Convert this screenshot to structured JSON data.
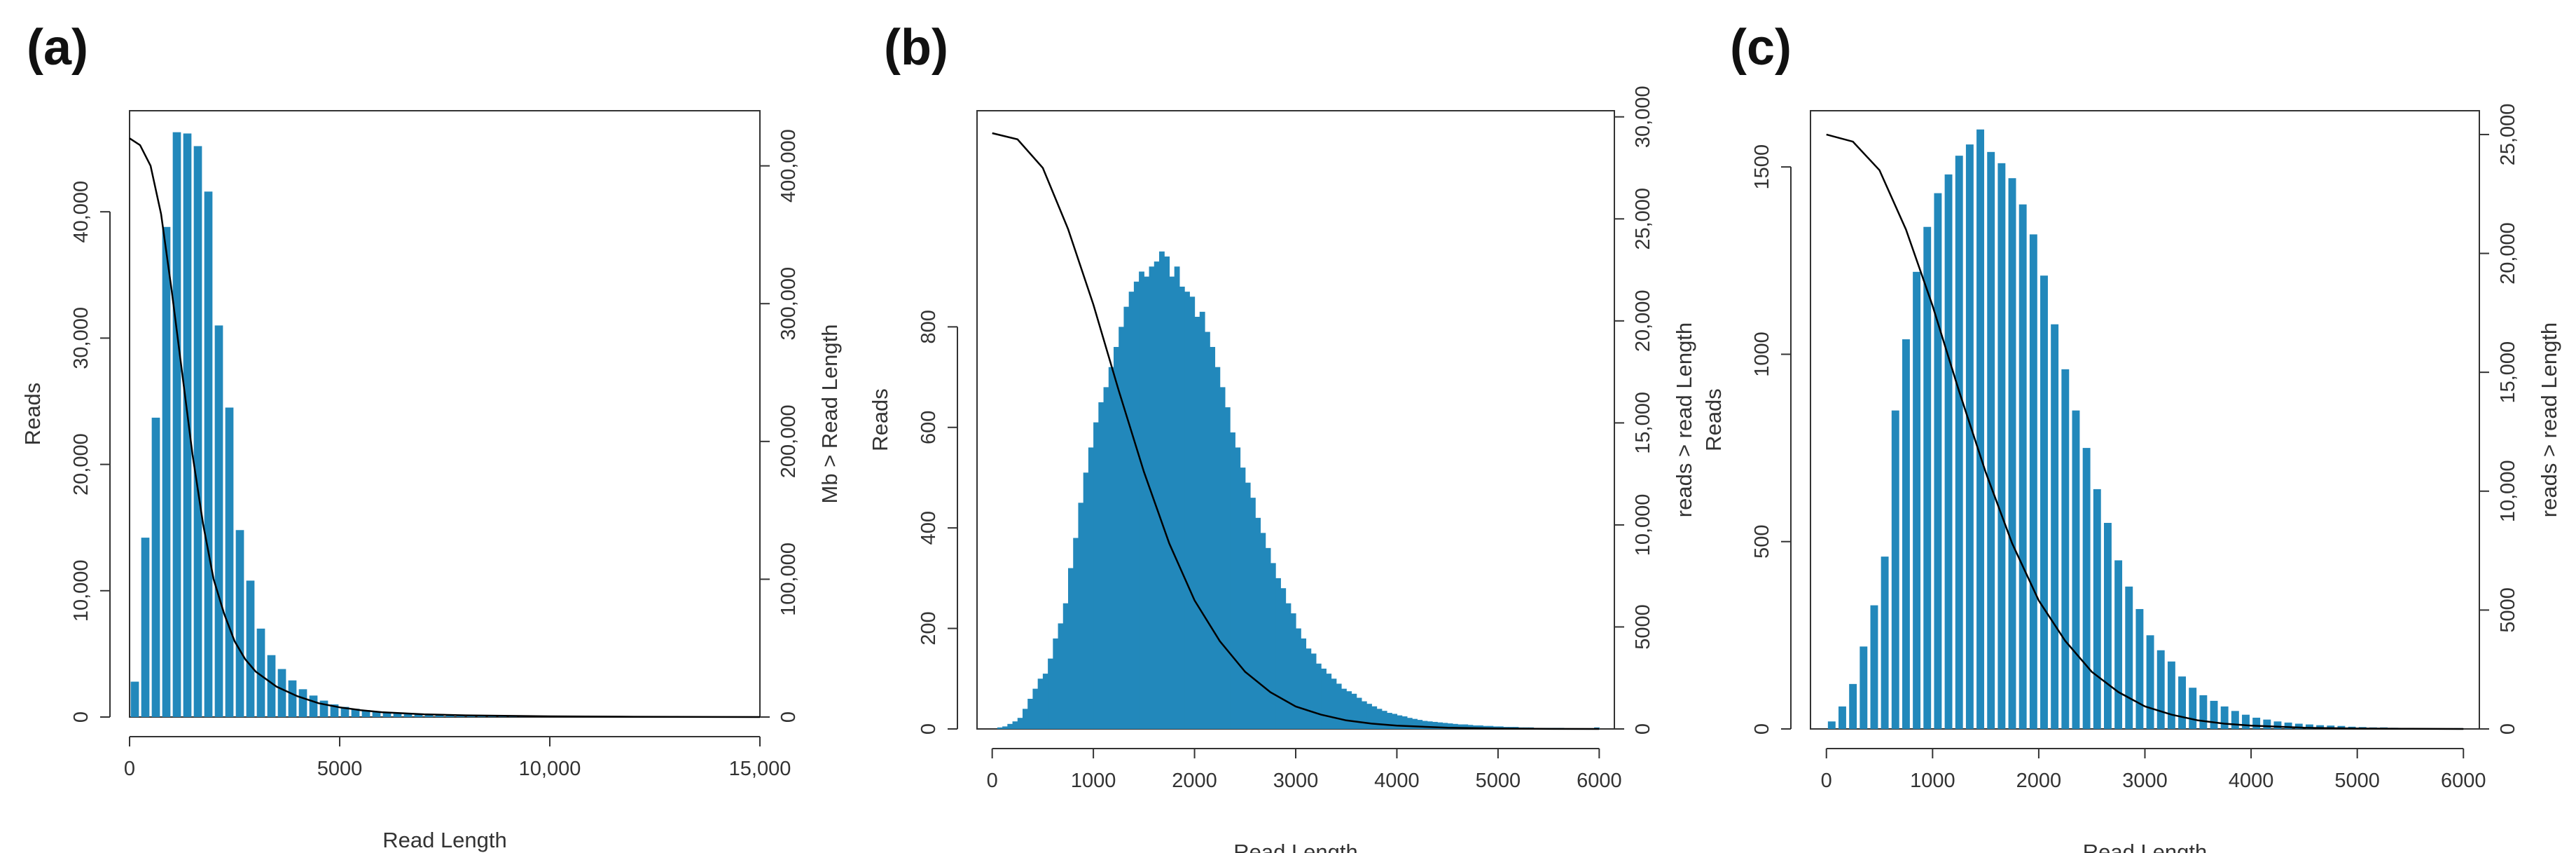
{
  "chart_data": [
    {
      "panel_label": "(a)",
      "type": "bar",
      "xlabel": "Read Length",
      "ylabel": "Reads",
      "y2label": "Mb > Read Length",
      "xlim": [
        0,
        15000
      ],
      "ylim": [
        0,
        48000
      ],
      "y2lim": [
        0,
        440000
      ],
      "xticks": [
        0,
        5000,
        10000,
        15000
      ],
      "xtick_labels": [
        "0",
        "5000",
        "10,000",
        "15,000"
      ],
      "yticks": [
        0,
        10000,
        20000,
        30000,
        40000
      ],
      "ytick_labels": [
        "0",
        "10,000",
        "20,000",
        "30,000",
        "40,000"
      ],
      "y2ticks": [
        0,
        100000,
        200000,
        300000,
        400000
      ],
      "y2tick_labels": [
        "0",
        "100,000",
        "200,000",
        "300,000",
        "400,000"
      ],
      "bin_width": 250,
      "bins_start": 0,
      "values": [
        2800,
        14200,
        23700,
        38800,
        46300,
        46200,
        45200,
        41600,
        31000,
        24500,
        14800,
        10800,
        7000,
        4900,
        3800,
        2900,
        2200,
        1700,
        1300,
        1000,
        800,
        650,
        550,
        450,
        380,
        320,
        280,
        240,
        210,
        190,
        170,
        150,
        140,
        130,
        120,
        110,
        100,
        95,
        90,
        85,
        80,
        75,
        70,
        65,
        60,
        55,
        52,
        50,
        48,
        46,
        44,
        42,
        40,
        38,
        36,
        34,
        32,
        30,
        28,
        26
      ],
      "curve": {
        "x": [
          0,
          250,
          500,
          750,
          1000,
          1250,
          1500,
          1750,
          2000,
          2250,
          2500,
          2750,
          3000,
          3500,
          4000,
          4500,
          5000,
          5500,
          6000,
          7000,
          8000,
          10000,
          12000,
          15000
        ],
        "y": [
          420000,
          415000,
          400000,
          365000,
          310000,
          250000,
          190000,
          140000,
          100000,
          75000,
          55000,
          42000,
          33000,
          22000,
          15000,
          10000,
          7000,
          5000,
          3500,
          2000,
          1200,
          500,
          200,
          0
        ]
      },
      "bar_color": "#2288bb"
    },
    {
      "panel_label": "(b)",
      "type": "bar",
      "xlabel": "Read Length",
      "ylabel": "Reads",
      "y2label": "reads > read Length",
      "xlim": [
        -150,
        6150
      ],
      "ylim": [
        0,
        1230
      ],
      "y2lim": [
        0,
        30300
      ],
      "xticks": [
        0,
        1000,
        2000,
        3000,
        4000,
        5000,
        6000
      ],
      "xtick_labels": [
        "0",
        "1000",
        "2000",
        "3000",
        "4000",
        "5000",
        "6000"
      ],
      "yticks": [
        0,
        200,
        400,
        600,
        800
      ],
      "ytick_labels": [
        "0",
        "200",
        "400",
        "600",
        "800"
      ],
      "y2ticks": [
        0,
        5000,
        10000,
        15000,
        20000,
        25000,
        30000
      ],
      "y2tick_labels": [
        "0",
        "5000",
        "10,000",
        "15,000",
        "20,000",
        "25,000",
        "30,000"
      ],
      "bin_width": 50,
      "bins_start": 0,
      "values": [
        0,
        3,
        5,
        10,
        15,
        22,
        40,
        60,
        80,
        100,
        110,
        140,
        180,
        210,
        250,
        320,
        380,
        450,
        510,
        560,
        610,
        650,
        680,
        720,
        760,
        800,
        840,
        870,
        890,
        910,
        900,
        920,
        930,
        950,
        940,
        900,
        920,
        880,
        870,
        860,
        820,
        830,
        790,
        760,
        720,
        680,
        640,
        590,
        560,
        520,
        490,
        460,
        420,
        390,
        360,
        330,
        300,
        280,
        250,
        230,
        200,
        180,
        160,
        150,
        130,
        120,
        110,
        100,
        90,
        80,
        75,
        70,
        62,
        55,
        50,
        45,
        40,
        36,
        32,
        30,
        27,
        25,
        22,
        20,
        18,
        16,
        15,
        14,
        13,
        12,
        11,
        10,
        9,
        9,
        8,
        7,
        7,
        6,
        6,
        5,
        5,
        4,
        4,
        4,
        3,
        3,
        3,
        2,
        2,
        2,
        2,
        2,
        2,
        1,
        1,
        1,
        1,
        1,
        1,
        3
      ],
      "curve": {
        "x": [
          0,
          250,
          500,
          750,
          1000,
          1250,
          1500,
          1750,
          2000,
          2250,
          2500,
          2750,
          3000,
          3250,
          3500,
          3750,
          4000,
          4500,
          5000,
          5500,
          6000
        ],
        "y": [
          29200,
          28900,
          27500,
          24500,
          20800,
          16600,
          12600,
          9100,
          6300,
          4300,
          2800,
          1800,
          1100,
          700,
          420,
          260,
          160,
          60,
          20,
          5,
          0
        ]
      },
      "bar_color": "#2288bb"
    },
    {
      "panel_label": "(c)",
      "type": "bar",
      "xlabel": "Read Length",
      "ylabel": "Reads",
      "y2label": "reads > read Length",
      "xlim": [
        -150,
        6150
      ],
      "ylim": [
        0,
        1650
      ],
      "y2lim": [
        0,
        26000
      ],
      "xticks": [
        0,
        1000,
        2000,
        3000,
        4000,
        5000,
        6000
      ],
      "xtick_labels": [
        "0",
        "1000",
        "2000",
        "3000",
        "4000",
        "5000",
        "6000"
      ],
      "yticks": [
        0,
        500,
        1000,
        1500
      ],
      "ytick_labels": [
        "0",
        "500",
        "1000",
        "1500"
      ],
      "y2ticks": [
        0,
        5000,
        10000,
        15000,
        20000,
        25000
      ],
      "y2tick_labels": [
        "0",
        "5000",
        "10,000",
        "15,000",
        "20,000",
        "25,000"
      ],
      "bin_width": 100,
      "bins_start": 0,
      "values": [
        20,
        60,
        120,
        220,
        330,
        460,
        850,
        1040,
        1220,
        1340,
        1430,
        1480,
        1530,
        1560,
        1600,
        1540,
        1510,
        1470,
        1400,
        1320,
        1210,
        1080,
        960,
        850,
        750,
        640,
        550,
        450,
        380,
        320,
        250,
        210,
        180,
        140,
        110,
        90,
        75,
        60,
        48,
        38,
        30,
        25,
        20,
        17,
        14,
        12,
        10,
        9,
        8,
        6,
        5,
        4,
        4,
        3,
        2,
        2,
        2,
        1,
        1,
        2
      ],
      "curve": {
        "x": [
          0,
          250,
          500,
          750,
          1000,
          1250,
          1500,
          1750,
          2000,
          2250,
          2500,
          2750,
          3000,
          3250,
          3500,
          3750,
          4000,
          4500,
          5000,
          5500,
          6000
        ],
        "y": [
          25000,
          24700,
          23500,
          21000,
          17800,
          14200,
          10800,
          7800,
          5400,
          3700,
          2400,
          1550,
          950,
          600,
          360,
          220,
          140,
          50,
          18,
          5,
          0
        ]
      },
      "bar_color": "#2288bb"
    }
  ]
}
